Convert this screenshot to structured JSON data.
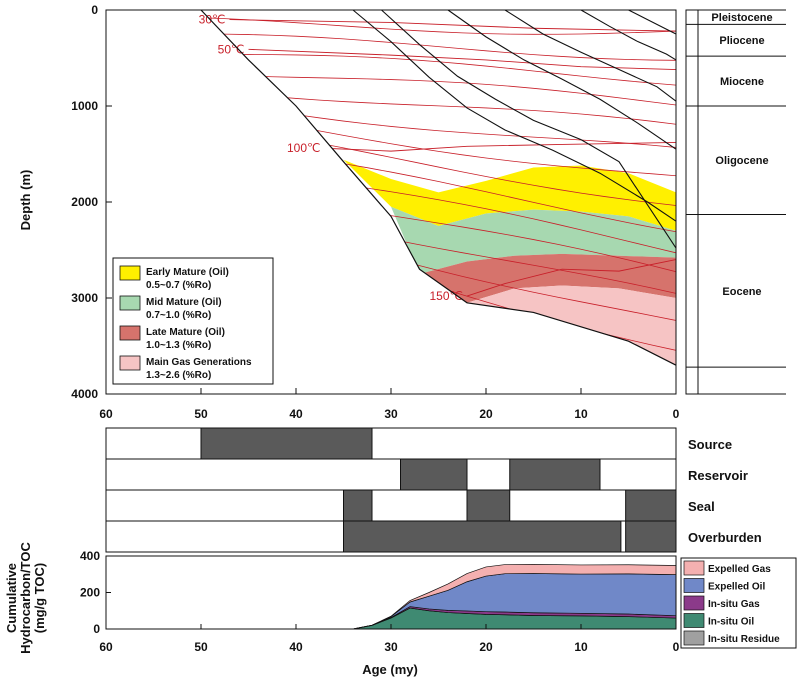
{
  "colors": {
    "early_mature": "#fff000",
    "mid_mature": "#a7d8b0",
    "late_mature": "#d6736c",
    "main_gas": "#f6c4c4",
    "isotherm": "#c8202a",
    "burial": "#111111",
    "element_block": "#5a5a5a",
    "expelled_gas": "#f4b0b0",
    "expelled_oil": "#7088c8",
    "insitu_gas": "#8b3a8a",
    "insitu_oil": "#3f8a72",
    "insitu_residue": "#a0a0a0"
  },
  "chart_data": [
    {
      "type": "area",
      "name": "burial_history",
      "xlabel": "",
      "ylabel": "Depth (m)",
      "xlim": [
        60,
        0
      ],
      "ylim": [
        4000,
        0
      ],
      "x_ticks": [
        "60",
        "50",
        "40",
        "30",
        "20",
        "10",
        "0"
      ],
      "y_ticks": [
        "0",
        "1000",
        "2000",
        "3000",
        "4000"
      ],
      "basin_base": [
        [
          50,
          0
        ],
        [
          45,
          520
        ],
        [
          40,
          1000
        ],
        [
          35,
          1580
        ],
        [
          30,
          2150
        ],
        [
          27,
          2700
        ],
        [
          22,
          3050
        ],
        [
          15,
          3150
        ],
        [
          10,
          3300
        ],
        [
          5,
          3450
        ],
        [
          0,
          3700
        ]
      ],
      "burial_lines": [
        [
          [
            34,
            0
          ],
          [
            30,
            330
          ],
          [
            26,
            700
          ],
          [
            22,
            1020
          ],
          [
            18,
            1250
          ],
          [
            13,
            1460
          ],
          [
            8,
            1700
          ],
          [
            3,
            2000
          ],
          [
            0,
            2200
          ]
        ],
        [
          [
            31,
            0
          ],
          [
            27,
            360
          ],
          [
            23,
            690
          ],
          [
            19,
            930
          ],
          [
            15,
            1150
          ],
          [
            10,
            1350
          ],
          [
            6,
            1580
          ],
          [
            0,
            2480
          ]
        ],
        [
          [
            24,
            0
          ],
          [
            20,
            280
          ],
          [
            16,
            520
          ],
          [
            12,
            720
          ],
          [
            8,
            930
          ],
          [
            4,
            1180
          ],
          [
            0,
            1450
          ]
        ],
        [
          [
            18,
            0
          ],
          [
            14,
            250
          ],
          [
            10,
            440
          ],
          [
            6,
            620
          ],
          [
            2,
            800
          ],
          [
            0,
            950
          ]
        ],
        [
          [
            10,
            0
          ],
          [
            7,
            170
          ],
          [
            4,
            330
          ],
          [
            1,
            460
          ],
          [
            0,
            520
          ]
        ],
        [
          [
            5,
            0
          ],
          [
            3,
            100
          ],
          [
            1,
            200
          ],
          [
            0,
            250
          ]
        ]
      ],
      "isotherms": [
        {
          "label": "30℃",
          "points": [
            [
              47,
              100
            ],
            [
              30,
              130
            ],
            [
              15,
              190
            ],
            [
              0,
              220
            ]
          ]
        },
        {
          "label": "50℃",
          "points": [
            [
              45,
              410
            ],
            [
              30,
              470
            ],
            [
              20,
              520
            ],
            [
              10,
              590
            ],
            [
              0,
              620
            ]
          ]
        },
        {
          "label": "100℃",
          "points": [
            [
              37,
              1440
            ],
            [
              30,
              1470
            ],
            [
              22,
              1420
            ],
            [
              12,
              1400
            ],
            [
              0,
              1380
            ]
          ]
        },
        {
          "label": "150℃",
          "points": [
            [
              22,
              2980
            ],
            [
              18,
              2850
            ],
            [
              12,
              2700
            ],
            [
              6,
              2720
            ],
            [
              0,
              2600
            ]
          ]
        }
      ],
      "maturity_windows": [
        {
          "name": "Early Mature (Oil)",
          "range": "0.5~0.7 (%Ro)",
          "top": [
            [
              35,
              1560
            ],
            [
              30,
              1760
            ],
            [
              25,
              1900
            ],
            [
              20,
              1780
            ],
            [
              15,
              1640
            ],
            [
              10,
              1620
            ],
            [
              5,
              1700
            ],
            [
              0,
              1900
            ]
          ],
          "bottom": [
            [
              30,
              2050
            ],
            [
              25,
              2250
            ],
            [
              20,
              2120
            ],
            [
              15,
              2080
            ],
            [
              10,
              2100
            ],
            [
              5,
              2150
            ],
            [
              0,
              2300
            ]
          ]
        },
        {
          "name": "Mid Mature (Oil)",
          "range": "0.7~1.0 (%Ro)",
          "top": [
            [
              30,
              2050
            ],
            [
              25,
              2250
            ],
            [
              20,
              2120
            ],
            [
              15,
              2080
            ],
            [
              10,
              2100
            ],
            [
              5,
              2150
            ],
            [
              0,
              2300
            ]
          ],
          "bottom": [
            [
              27,
              2750
            ],
            [
              22,
              2620
            ],
            [
              17,
              2560
            ],
            [
              12,
              2540
            ],
            [
              6,
              2560
            ],
            [
              0,
              2580
            ]
          ]
        },
        {
          "name": "Late Mature (Oil)",
          "range": "1.0~1.3 (%Ro)",
          "top": [
            [
              27,
              2750
            ],
            [
              22,
              2620
            ],
            [
              17,
              2560
            ],
            [
              12,
              2540
            ],
            [
              6,
              2560
            ],
            [
              0,
              2580
            ]
          ],
          "bottom": [
            [
              22,
              3050
            ],
            [
              17,
              2900
            ],
            [
              12,
              2870
            ],
            [
              6,
              2900
            ],
            [
              0,
              3000
            ]
          ]
        },
        {
          "name": "Main Gas Generations",
          "range": "1.3~2.6 (%Ro)",
          "top": [
            [
              22,
              3050
            ],
            [
              17,
              2900
            ],
            [
              12,
              2870
            ],
            [
              6,
              2900
            ],
            [
              0,
              3000
            ]
          ],
          "bottom": [
            [
              15,
              3150
            ],
            [
              10,
              3300
            ],
            [
              5,
              3450
            ],
            [
              0,
              3700
            ]
          ]
        }
      ],
      "epochs": [
        {
          "name": "Pleistocene",
          "top": 0,
          "bottom": 150
        },
        {
          "name": "Pliocene",
          "top": 150,
          "bottom": 480
        },
        {
          "name": "Miocene",
          "top": 480,
          "bottom": 1000
        },
        {
          "name": "Oligocene",
          "top": 1000,
          "bottom": 2130
        },
        {
          "name": "Eocene",
          "top": 2130,
          "bottom": 3720
        },
        {
          "name": "",
          "top": 3720,
          "bottom": 4000
        }
      ]
    },
    {
      "type": "table",
      "name": "petroleum_system_elements",
      "xlim": [
        60,
        0
      ],
      "rows": [
        {
          "label": "Source",
          "intervals": [
            [
              50,
              32
            ]
          ]
        },
        {
          "label": "Reservoir",
          "intervals": [
            [
              29,
              22
            ],
            [
              17.5,
              8
            ]
          ]
        },
        {
          "label": "Seal",
          "intervals": [
            [
              35,
              32
            ],
            [
              22,
              17.5
            ],
            [
              5.3,
              0
            ]
          ]
        },
        {
          "label": "Overburden",
          "intervals": [
            [
              35,
              5.8
            ],
            [
              5.3,
              0
            ]
          ]
        }
      ]
    },
    {
      "type": "area",
      "name": "cumulative_hydrocarbon",
      "xlabel": "Age (my)",
      "ylabel": "Cumulative Hydrocarbon/TOC (mg/g TOC)",
      "xlim": [
        60,
        0
      ],
      "ylim": [
        0,
        400
      ],
      "x_ticks": [
        "60",
        "50",
        "40",
        "30",
        "20",
        "10",
        "0"
      ],
      "y_ticks": [
        "0",
        "200",
        "400"
      ],
      "x": [
        34,
        32,
        30,
        28,
        26,
        24,
        22,
        20,
        18,
        15,
        10,
        5,
        0
      ],
      "series": [
        {
          "name": "In-situ Residue",
          "values": [
            0,
            0,
            0,
            0,
            0,
            0,
            0,
            0,
            0,
            0,
            0,
            0,
            0
          ]
        },
        {
          "name": "In-situ Oil",
          "values": [
            0,
            20,
            60,
            115,
            100,
            90,
            85,
            80,
            78,
            74,
            72,
            68,
            60
          ]
        },
        {
          "name": "In-situ Gas",
          "values": [
            0,
            1,
            3,
            8,
            10,
            12,
            14,
            15,
            15,
            15,
            14,
            14,
            13
          ]
        },
        {
          "name": "Expelled Oil",
          "values": [
            0,
            0,
            5,
            25,
            70,
            110,
            160,
            195,
            210,
            215,
            215,
            220,
            225
          ]
        },
        {
          "name": "Expelled Gas",
          "values": [
            0,
            0,
            2,
            8,
            20,
            35,
            45,
            50,
            50,
            50,
            50,
            50,
            50
          ]
        }
      ]
    }
  ],
  "labels": {
    "top_ylabel": "Depth (m)",
    "bottom_ylabel_line1": "Cumulative",
    "bottom_ylabel_line2": "Hydrocarbon/TOC",
    "bottom_ylabel_line3": "(mg/g TOC)",
    "xlabel": "Age (my)"
  }
}
